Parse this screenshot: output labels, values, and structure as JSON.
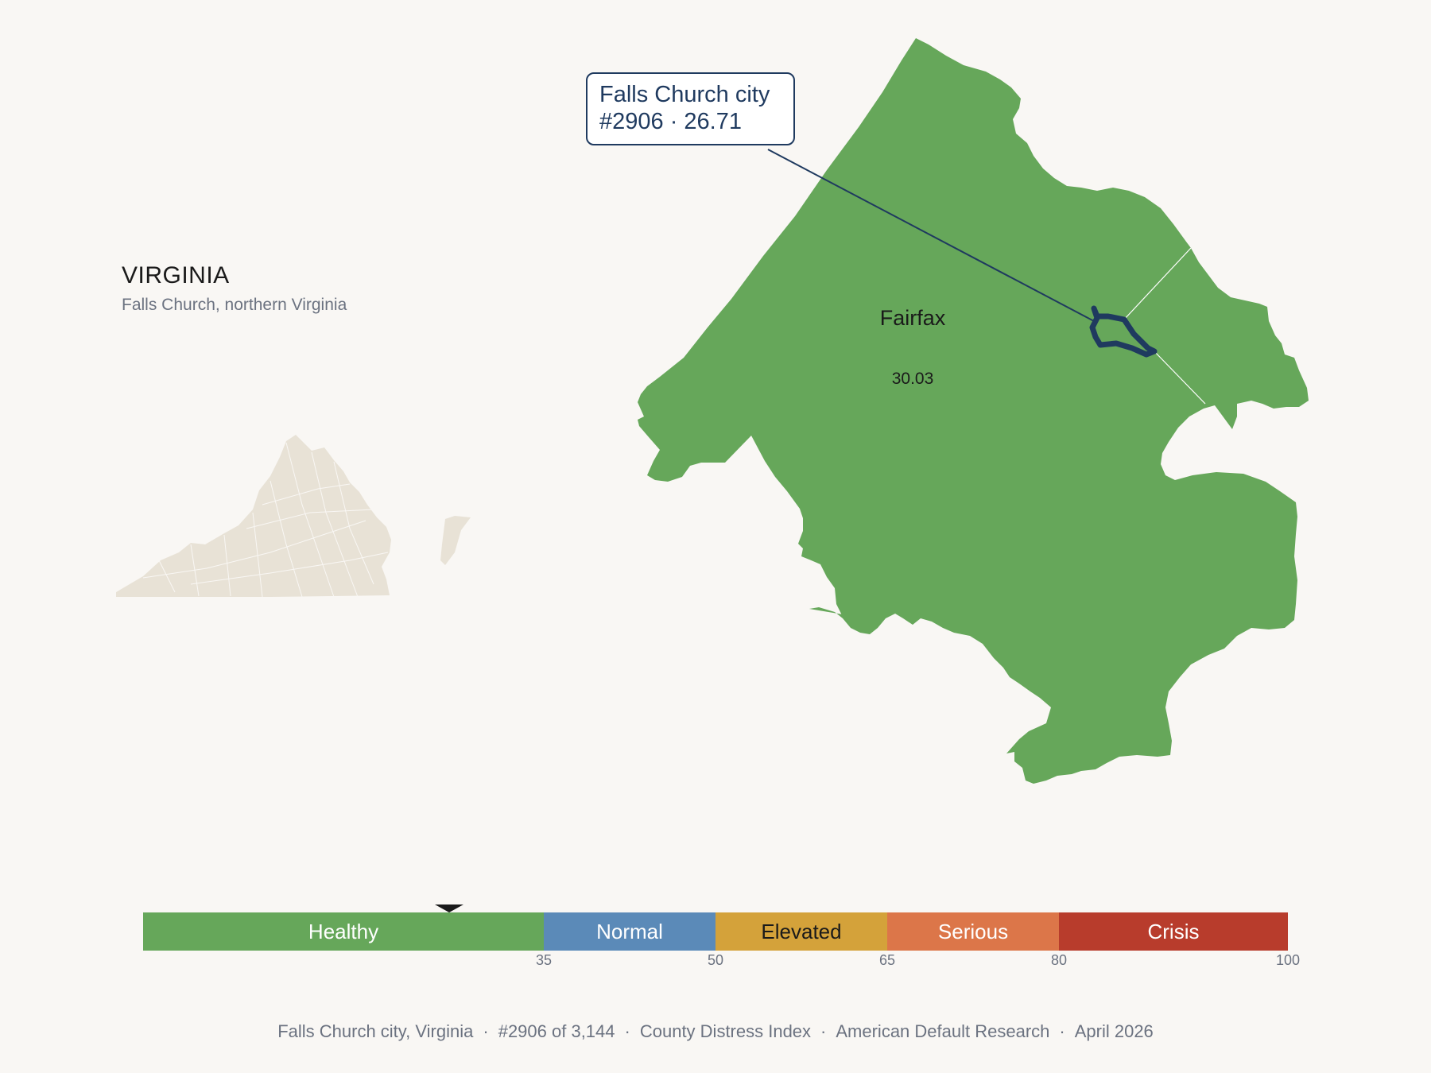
{
  "header": {
    "state": "VIRGINIA",
    "subtitle": "Falls Church, northern Virginia"
  },
  "callout": {
    "name": "Falls Church city",
    "rank_score": "#2906 · 26.71"
  },
  "county": {
    "name": "Fairfax",
    "score": "30.03",
    "fill_color": "#66a75a"
  },
  "highlight": {
    "outline_color": "#1f3a5f",
    "score_value": 26.71
  },
  "scale": {
    "segments": [
      {
        "label": "Healthy",
        "color": "#66a75a",
        "text_color": "#ffffff",
        "from": 0,
        "to": 35
      },
      {
        "label": "Normal",
        "color": "#5b8ab8",
        "text_color": "#ffffff",
        "from": 35,
        "to": 50
      },
      {
        "label": "Elevated",
        "color": "#d4a23a",
        "text_color": "#1a1a1a",
        "from": 50,
        "to": 65
      },
      {
        "label": "Serious",
        "color": "#dc7649",
        "text_color": "#ffffff",
        "from": 65,
        "to": 80
      },
      {
        "label": "Crisis",
        "color": "#b83c2c",
        "text_color": "#ffffff",
        "from": 80,
        "to": 100
      }
    ],
    "ticks": [
      "35",
      "50",
      "65",
      "80",
      "100"
    ]
  },
  "footer": {
    "parts": [
      "Falls Church city, Virginia",
      "#2906 of 3,144",
      "County Distress Index",
      "American Default Research",
      "April 2026"
    ],
    "separator": "·"
  },
  "colors": {
    "background": "#f9f7f4",
    "inset_fill": "#e8e2d6"
  }
}
